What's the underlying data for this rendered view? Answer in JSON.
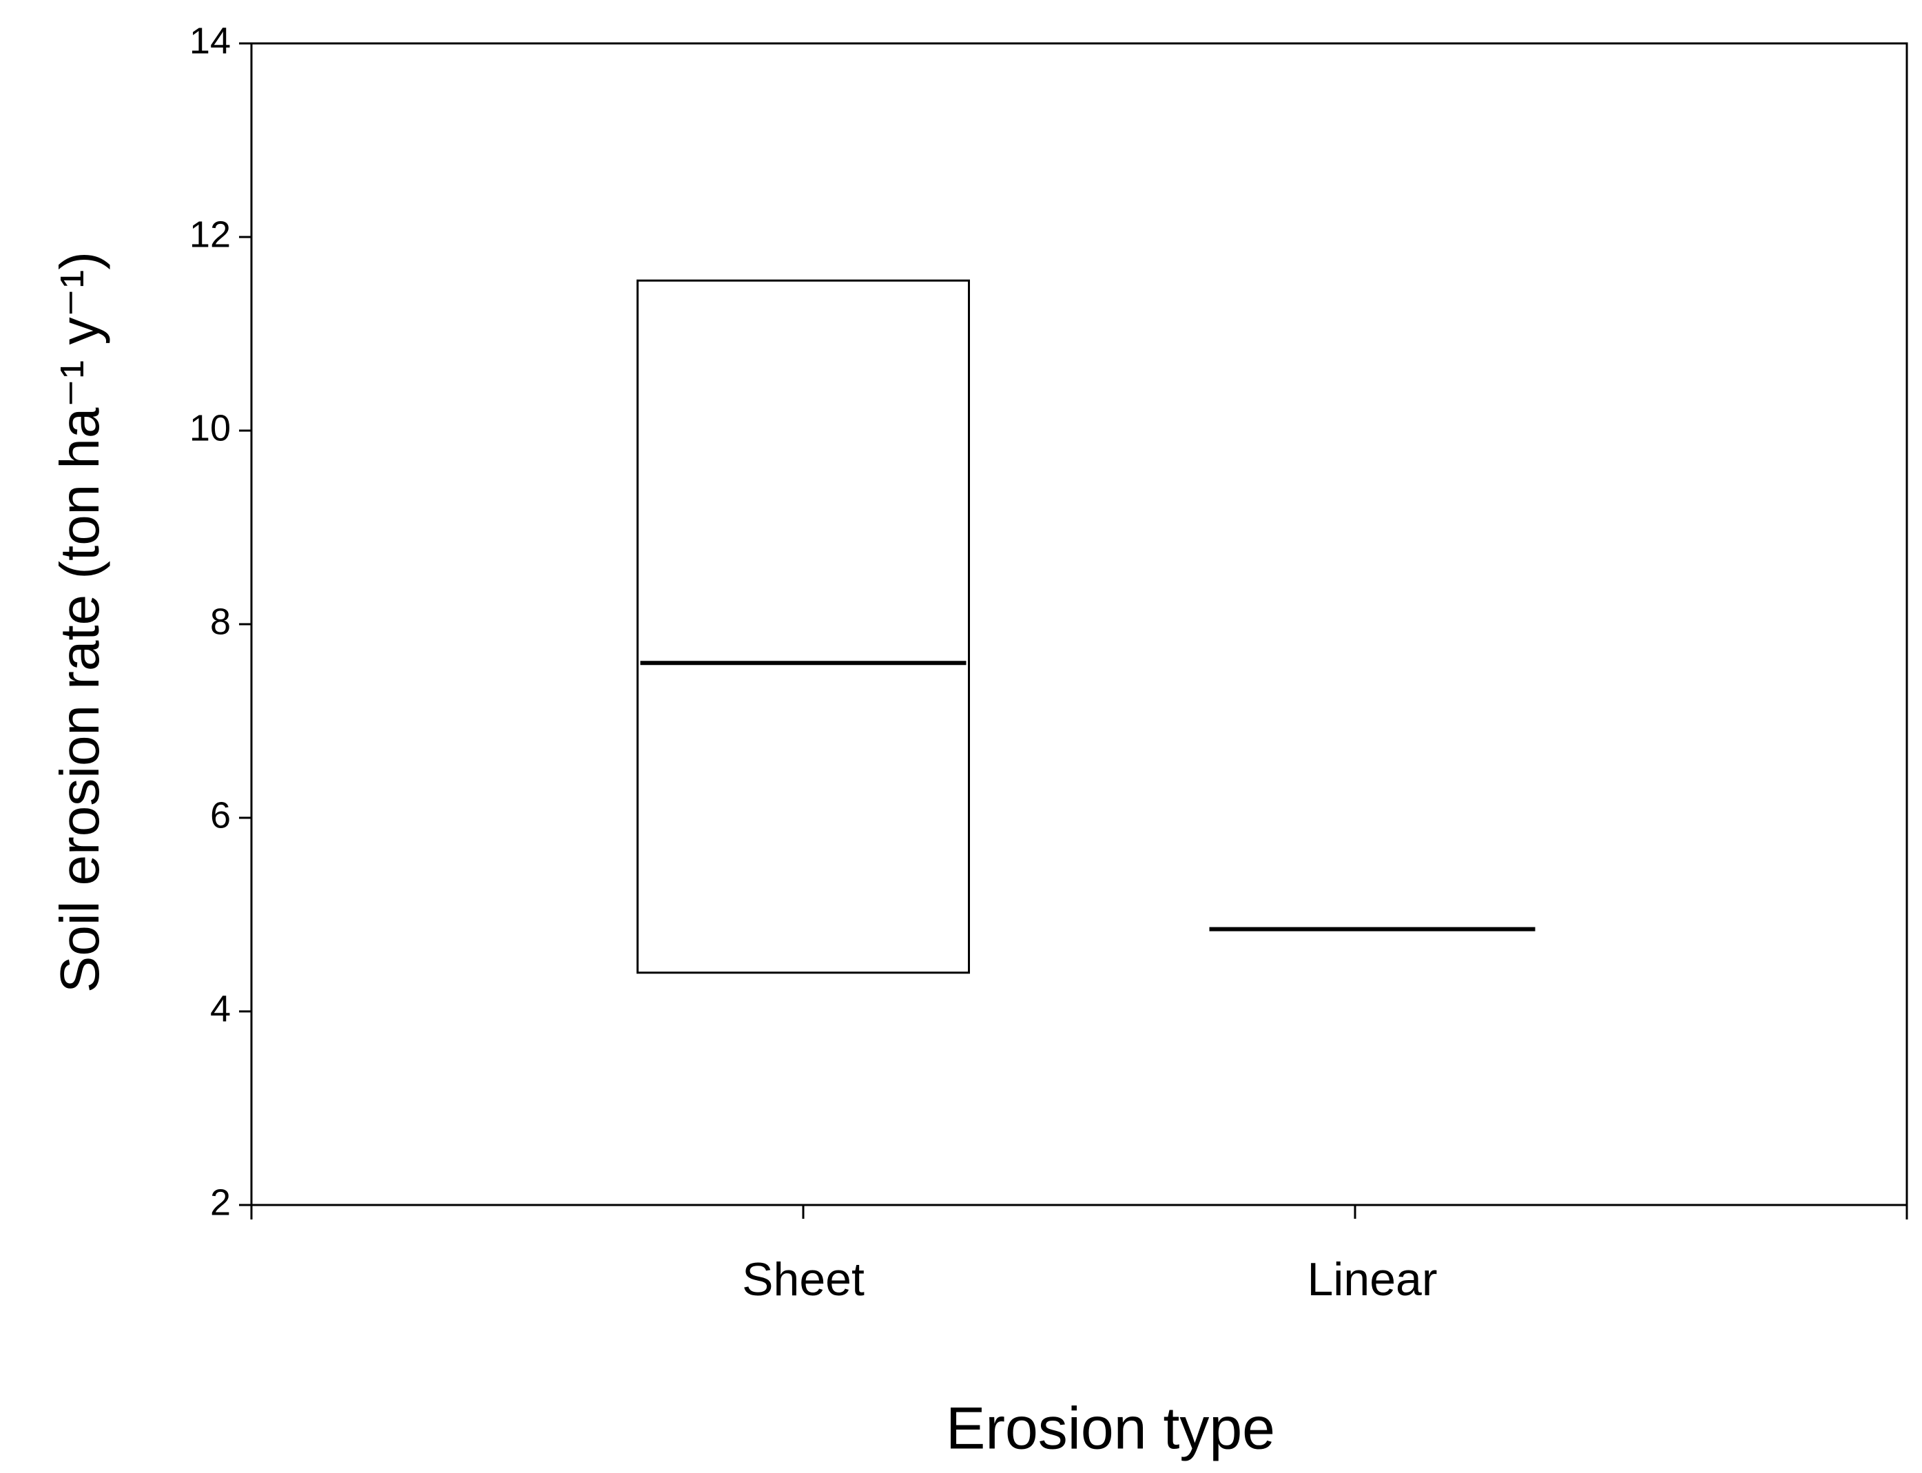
{
  "chart_data": {
    "type": "box",
    "x_label": "Erosion type",
    "y_label": "Soil erosion rate (ton ha⁻¹ y⁻¹)",
    "categories": [
      "Sheet",
      "Linear"
    ],
    "boxes": [
      {
        "q1": 4.4,
        "median": 7.6,
        "q3": 11.55
      },
      {
        "q1": 4.85,
        "median": 4.85,
        "q3": 4.85
      }
    ],
    "color": "#000000",
    "ylim": [
      2,
      14
    ],
    "yticks": [
      2,
      4,
      6,
      8,
      10,
      12,
      14
    ],
    "grid": false
  }
}
